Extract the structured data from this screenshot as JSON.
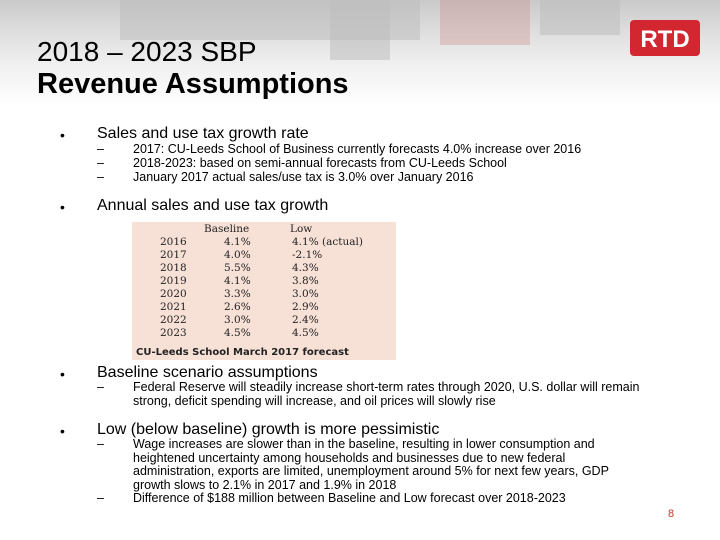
{
  "slide": {
    "title_line1": "2018 – 2023 SBP",
    "title_line2": "Revenue Assumptions",
    "logo_text": "RTD",
    "page_number": "8",
    "bullet_char": "•",
    "dash_char": "–"
  },
  "colors": {
    "logo_red": "#d22630",
    "table_bg": "#f7e0d6",
    "page_number": "#c0392b"
  },
  "sections": [
    {
      "heading": "Sales and use tax growth rate",
      "subs": [
        "2017: CU-Leeds School of Business currently forecasts 4.0% increase over 2016",
        "2018-2023: based on semi-annual forecasts from CU-Leeds School",
        "January 2017 actual sales/use tax is 3.0% over January 2016"
      ]
    },
    {
      "heading": "Annual sales and use tax growth",
      "subs": []
    },
    {
      "heading": "Baseline scenario assumptions",
      "subs": [
        "Federal Reserve will steadily increase short-term rates through 2020, U.S. dollar will remain strong, deficit spending will increase, and oil prices will slowly rise"
      ]
    },
    {
      "heading": "Low (below baseline) growth is more pessimistic",
      "subs": [
        "Wage increases are slower than in the baseline, resulting in lower consumption and heightened uncertainty among households and businesses due to new federal administration, exports are limited, unemployment around 5% for next few years, GDP growth slows to 2.1% in 2017 and 1.9% in 2018",
        "Difference of $188 million between Baseline and Low forecast over 2018-2023"
      ]
    }
  ],
  "tax_table": {
    "headers": [
      "",
      "Baseline",
      "Low"
    ],
    "rows": [
      {
        "year": "2016",
        "baseline": "4.1%",
        "low": "4.1% (actual)"
      },
      {
        "year": "2017",
        "baseline": "4.0%",
        "low": "-2.1%"
      },
      {
        "year": "2018",
        "baseline": "5.5%",
        "low": "4.3%"
      },
      {
        "year": "2019",
        "baseline": "4.1%",
        "low": "3.8%"
      },
      {
        "year": "2020",
        "baseline": "3.3%",
        "low": "3.0%"
      },
      {
        "year": "2021",
        "baseline": "2.6%",
        "low": "2.9%"
      },
      {
        "year": "2022",
        "baseline": "3.0%",
        "low": "2.4%"
      },
      {
        "year": "2023",
        "baseline": "4.5%",
        "low": "4.5%"
      }
    ],
    "caption": "CU-Leeds School March 2017 forecast"
  }
}
